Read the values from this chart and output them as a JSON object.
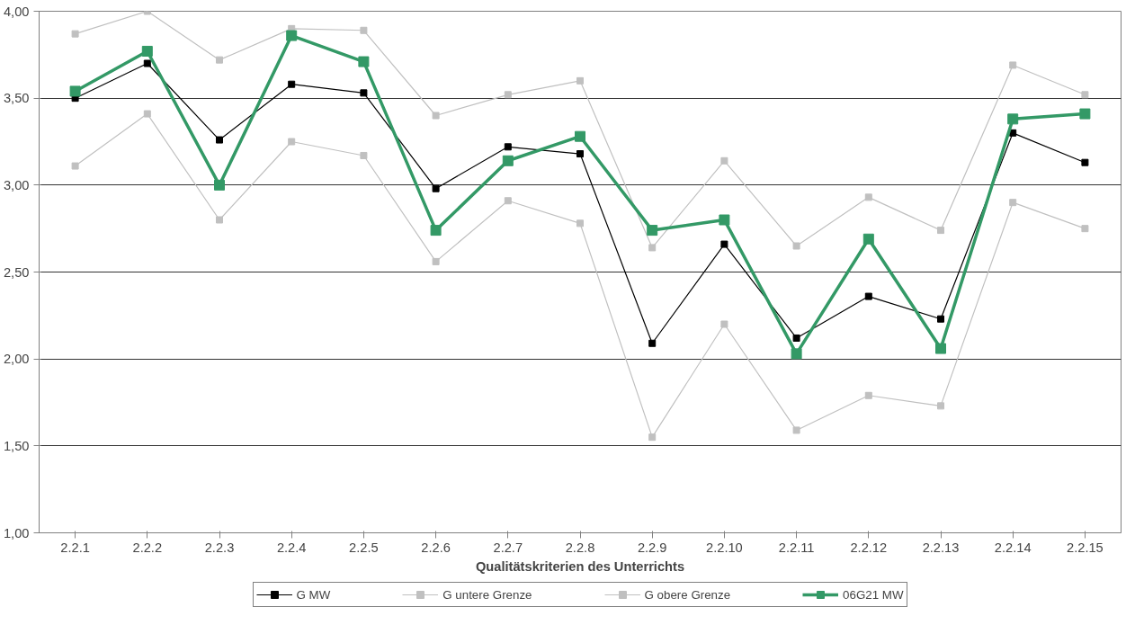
{
  "chart_data": {
    "type": "line",
    "xlabel": "Qualitätskriterien des Unterrichts",
    "categories": [
      "2.2.1",
      "2.2.2",
      "2.2.3",
      "2.2.4",
      "2.2.5",
      "2.2.6",
      "2.2.7",
      "2.2.8",
      "2.2.9",
      "2.2.10",
      "2.2.11",
      "2.2.12",
      "2.2.13",
      "2.2.14",
      "2.2.15"
    ],
    "series": [
      {
        "name": "G MW",
        "color": "#000000",
        "values": [
          3.5,
          3.7,
          3.26,
          3.58,
          3.53,
          2.98,
          3.22,
          3.18,
          2.09,
          2.66,
          2.12,
          2.36,
          2.23,
          3.3,
          3.13
        ]
      },
      {
        "name": "G untere Grenze",
        "color": "#c0c0c0",
        "values": [
          3.11,
          3.41,
          2.8,
          3.25,
          3.17,
          2.56,
          2.91,
          2.78,
          1.55,
          2.2,
          1.59,
          1.79,
          1.73,
          2.9,
          2.75
        ]
      },
      {
        "name": "G obere Grenze",
        "color": "#c0c0c0",
        "values": [
          3.87,
          4.0,
          3.72,
          3.9,
          3.89,
          3.4,
          3.52,
          3.6,
          2.64,
          3.14,
          2.65,
          2.93,
          2.74,
          3.69,
          3.52
        ]
      },
      {
        "name": "06G21 MW",
        "color": "#339966",
        "values": [
          3.54,
          3.77,
          3.0,
          3.86,
          3.71,
          2.74,
          3.14,
          3.28,
          2.74,
          2.8,
          2.03,
          2.69,
          2.06,
          3.38,
          3.41
        ]
      }
    ],
    "ylim": [
      1,
      4
    ],
    "yticks": [
      {
        "value": 1,
        "label": "1,00"
      },
      {
        "value": 1.5,
        "label": "1,50"
      },
      {
        "value": 2,
        "label": "2,00"
      },
      {
        "value": 2.5,
        "label": "2,50"
      },
      {
        "value": 3,
        "label": "3,00"
      },
      {
        "value": 3.5,
        "label": "3,50"
      },
      {
        "value": 4,
        "label": "4,00"
      }
    ],
    "grid": "y",
    "legend": "bottom",
    "marker": "square",
    "line_style": "solid"
  }
}
